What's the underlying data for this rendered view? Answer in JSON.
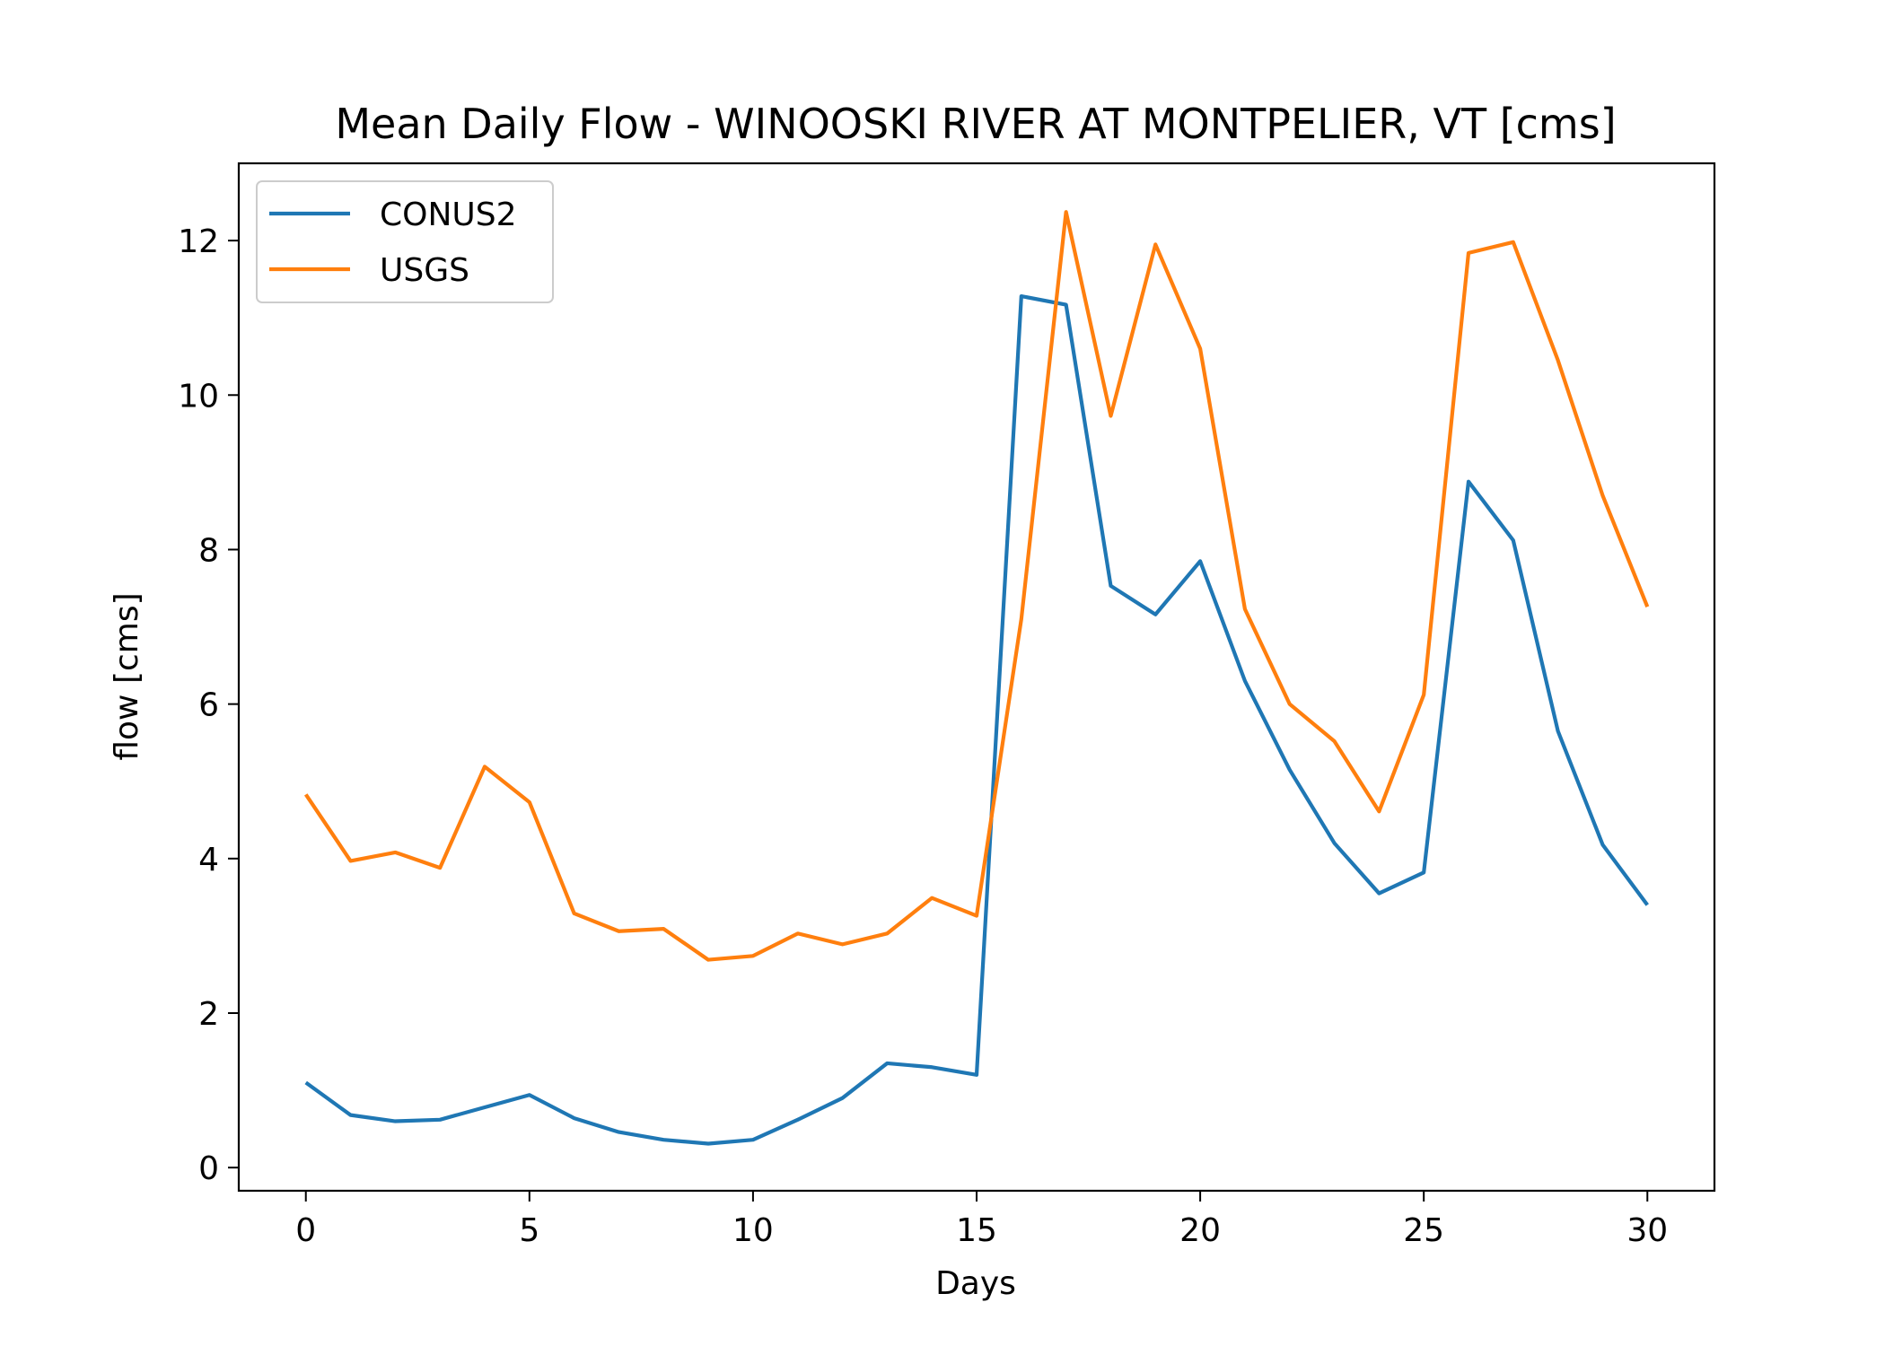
{
  "chart_data": {
    "type": "line",
    "title": "Mean Daily Flow - WINOOSKI RIVER AT MONTPELIER, VT [cms]",
    "xlabel": "Days",
    "ylabel": "flow [cms]",
    "xlim": [
      -1.5,
      31.5
    ],
    "ylim": [
      -0.3,
      13.0
    ],
    "xticks": [
      0,
      5,
      10,
      15,
      20,
      25,
      30
    ],
    "yticks": [
      0,
      2,
      4,
      6,
      8,
      10,
      12
    ],
    "grid": false,
    "legend_position": "upper-left",
    "x": [
      0,
      1,
      2,
      3,
      4,
      5,
      6,
      7,
      8,
      9,
      10,
      11,
      12,
      13,
      14,
      15,
      16,
      17,
      18,
      19,
      20,
      21,
      22,
      23,
      24,
      25,
      26,
      27,
      28,
      29,
      30
    ],
    "series": [
      {
        "name": "CONUS2",
        "color": "#1f77b4",
        "values": [
          1.1,
          0.68,
          0.6,
          0.62,
          0.78,
          0.94,
          0.64,
          0.46,
          0.36,
          0.31,
          0.36,
          0.62,
          0.9,
          1.35,
          1.3,
          1.2,
          11.28,
          11.17,
          7.53,
          7.16,
          7.85,
          6.3,
          5.15,
          4.2,
          3.55,
          3.82,
          8.88,
          8.12,
          5.65,
          4.18,
          3.4
        ]
      },
      {
        "name": "USGS",
        "color": "#ff7f0e",
        "values": [
          4.83,
          3.97,
          4.08,
          3.88,
          5.19,
          4.73,
          3.29,
          3.06,
          3.09,
          2.69,
          2.74,
          3.03,
          2.89,
          3.03,
          3.49,
          3.26,
          7.1,
          12.37,
          9.73,
          11.95,
          10.6,
          7.23,
          6.0,
          5.52,
          4.61,
          6.12,
          11.84,
          11.98,
          10.45,
          8.7,
          7.26
        ]
      }
    ]
  }
}
